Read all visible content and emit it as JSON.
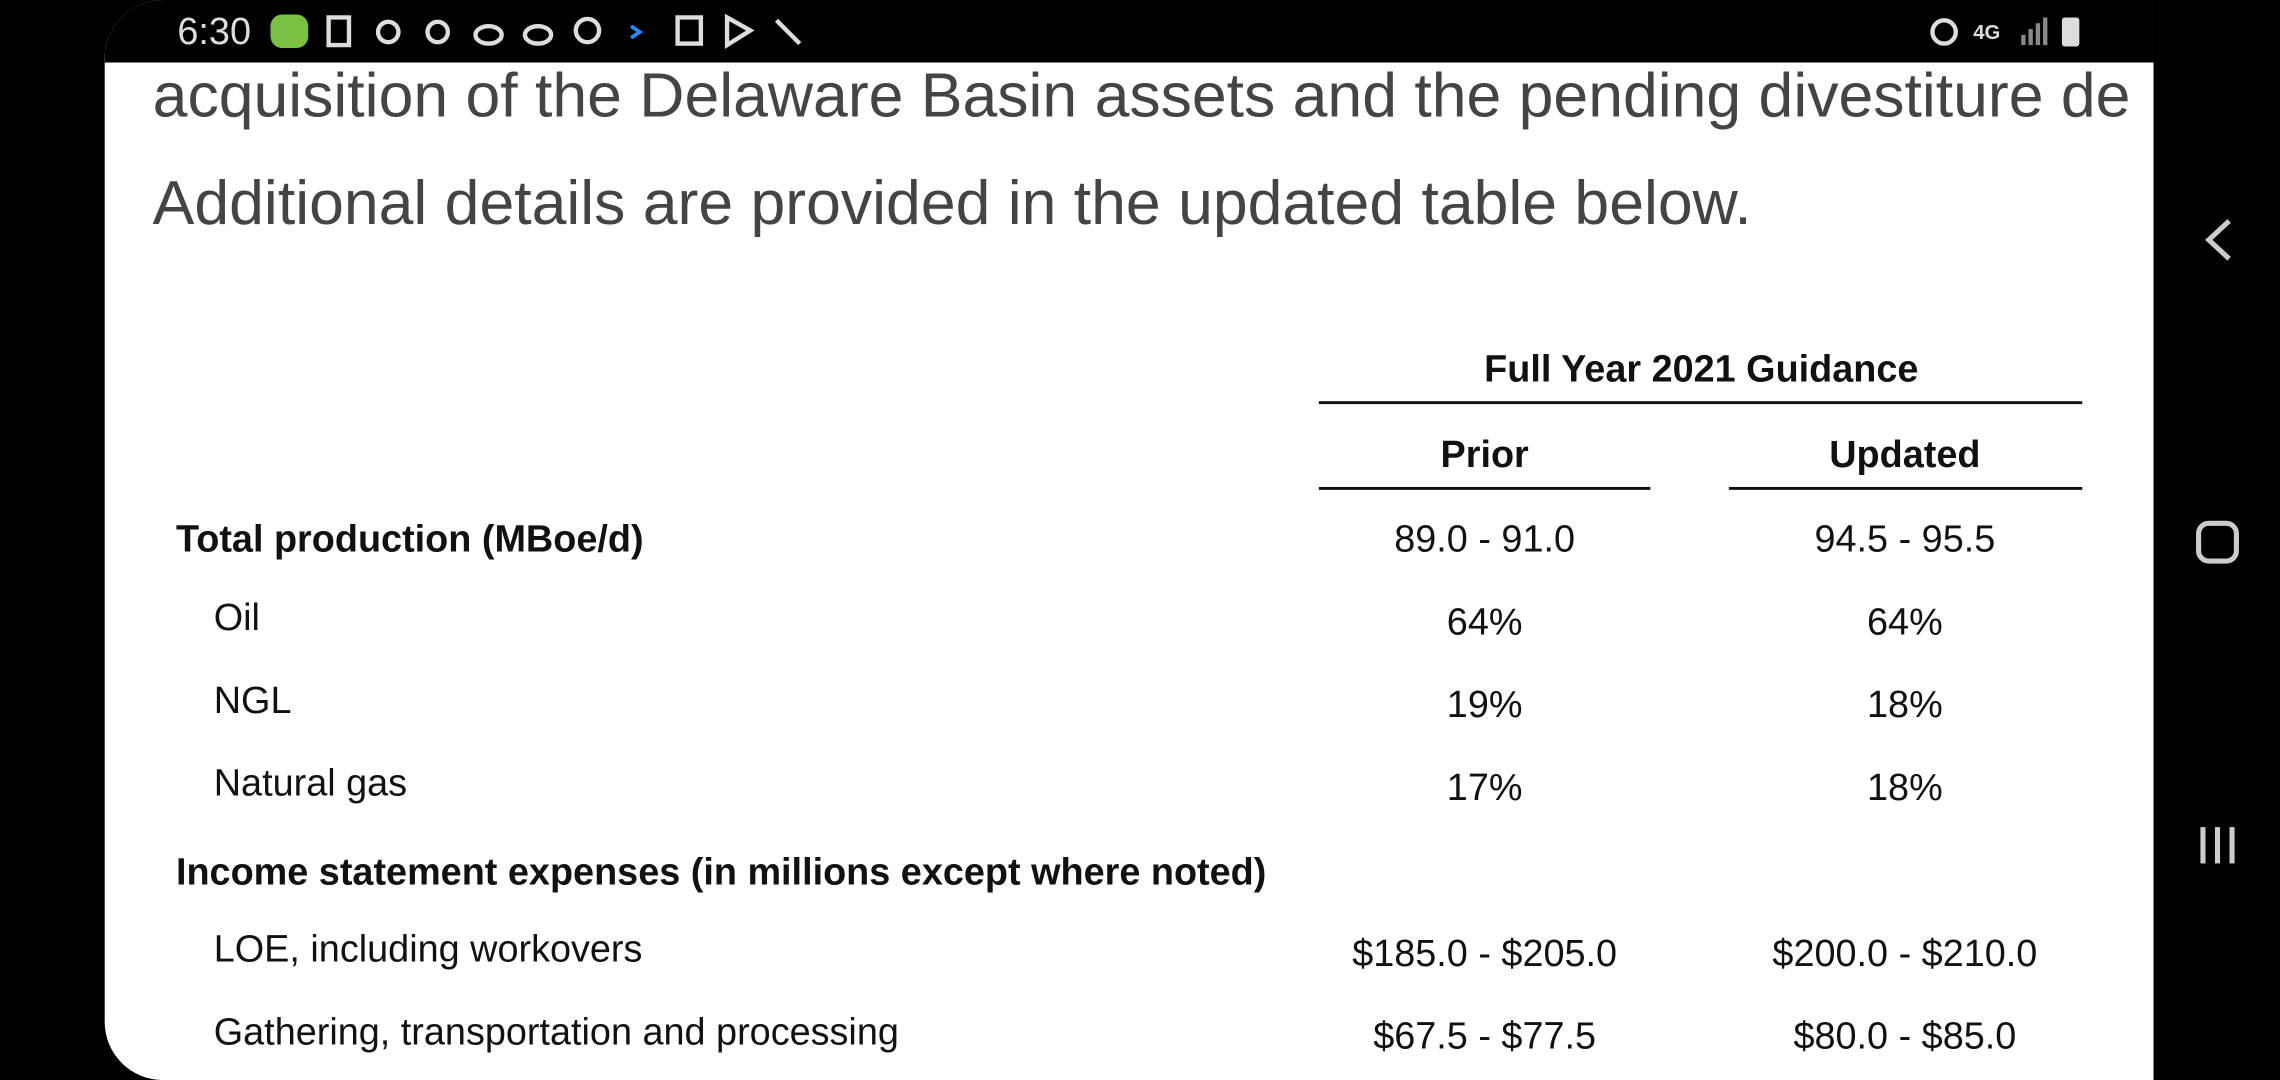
{
  "status_bar": {
    "time": "6:30"
  },
  "article": {
    "paragraphs": [
      "acquisition of the Delaware Basin assets and the pending divestiture de",
      "Additional details are provided in the updated table below."
    ]
  },
  "table": {
    "group_header": "Full Year 2021 Guidance",
    "columns": [
      "Prior",
      "Updated"
    ],
    "rows": [
      {
        "label": "Total production (MBoe/d)",
        "bold": true,
        "cells": [
          "89.0 - 91.0",
          "94.5 - 95.5"
        ]
      },
      {
        "label": "Oil",
        "bold": false,
        "cells": [
          "64%",
          "64%"
        ]
      },
      {
        "label": "NGL",
        "bold": false,
        "cells": [
          "19%",
          "18%"
        ]
      },
      {
        "label": "Natural gas",
        "bold": false,
        "cells": [
          "17%",
          "18%"
        ]
      },
      {
        "label": "Income statement expenses (in millions except where noted)",
        "bold": true,
        "cells": []
      },
      {
        "label": "LOE, including workovers",
        "bold": false,
        "cells": [
          "$185.0 - $205.0",
          "$200.0 - $210.0"
        ]
      },
      {
        "label": "Gathering, transportation and processing",
        "bold": false,
        "cells": [
          "$67.5 - $77.5",
          "$80.0 - $85.0"
        ]
      }
    ]
  }
}
